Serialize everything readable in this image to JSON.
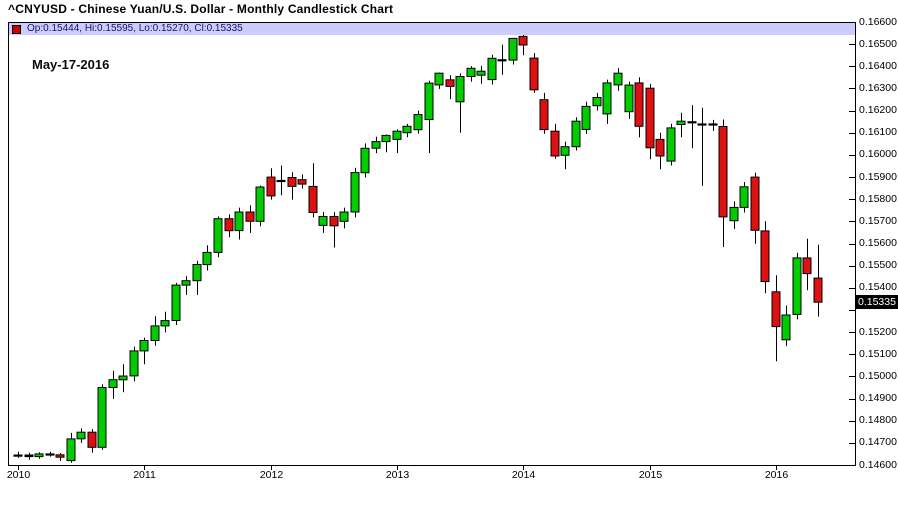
{
  "title": "^CNYUSD - Chinese Yuan/U.S. Dollar - Monthly Candlestick Chart",
  "info_bar": {
    "legend_icon": "red-square",
    "text": "Op:0.15444, Hi:0.15595, Lo:0.15270, Cl:0.15335"
  },
  "date_label": "May-17-2016",
  "price_marker": {
    "label": "0.15335",
    "value": 0.15335
  },
  "colors": {
    "up": "#00cc00",
    "down": "#dd1111",
    "outline": "#000000",
    "info_strip_bg": "#ccccff",
    "info_text": "#16165e",
    "marker_bg": "#000000",
    "marker_fg": "#ffffff"
  },
  "y_axis": {
    "min": 0.146,
    "max": 0.166,
    "step": 0.001,
    "side": "right",
    "labels": [
      "0.16600",
      "0.16500",
      "0.16400",
      "0.16300",
      "0.16200",
      "0.16100",
      "0.16000",
      "0.15900",
      "0.15800",
      "0.15700",
      "0.15600",
      "0.15500",
      "0.15400",
      "0.15200",
      "0.15100",
      "0.15000",
      "0.14900",
      "0.14800",
      "0.14700",
      "0.14600"
    ]
  },
  "x_axis": {
    "labels": [
      "2010",
      "2011",
      "2012",
      "2013",
      "2014",
      "2015",
      "2016"
    ]
  },
  "chart_data": {
    "type": "candlestick",
    "symbol": "^CNYUSD",
    "interval": "monthly",
    "title": "^CNYUSD - Chinese Yuan/U.S. Dollar - Monthly Candlestick Chart",
    "ylim": [
      0.146,
      0.166
    ],
    "grid": false,
    "legend_position": "top-left",
    "last_trade": {
      "date": "May-17-2016",
      "open": 0.15444,
      "high": 0.15595,
      "low": 0.1527,
      "close": 0.15335
    },
    "columns": [
      "month",
      "open",
      "high",
      "low",
      "close"
    ],
    "candles": [
      [
        "2010-01",
        0.14645,
        0.1466,
        0.14632,
        0.14645
      ],
      [
        "2010-02",
        0.14645,
        0.14655,
        0.14624,
        0.14638
      ],
      [
        "2010-03",
        0.14638,
        0.14658,
        0.14628,
        0.1465
      ],
      [
        "2010-04",
        0.1465,
        0.1466,
        0.14638,
        0.14646
      ],
      [
        "2010-05",
        0.14646,
        0.14654,
        0.14618,
        0.14635
      ],
      [
        "2010-06",
        0.1462,
        0.14745,
        0.1461,
        0.14718
      ],
      [
        "2010-07",
        0.14718,
        0.14765,
        0.147,
        0.14748
      ],
      [
        "2010-08",
        0.14748,
        0.14762,
        0.14655,
        0.1468
      ],
      [
        "2010-09",
        0.1468,
        0.14965,
        0.14668,
        0.1495
      ],
      [
        "2010-10",
        0.1495,
        0.15025,
        0.14898,
        0.14985
      ],
      [
        "2010-11",
        0.14985,
        0.15055,
        0.14928,
        0.15002
      ],
      [
        "2010-12",
        0.15002,
        0.15135,
        0.14978,
        0.15115
      ],
      [
        "2011-01",
        0.15115,
        0.15175,
        0.15055,
        0.15162
      ],
      [
        "2011-02",
        0.15162,
        0.15272,
        0.15138,
        0.15228
      ],
      [
        "2011-03",
        0.15228,
        0.15292,
        0.15198,
        0.15252
      ],
      [
        "2011-04",
        0.15252,
        0.15422,
        0.15232,
        0.15412
      ],
      [
        "2011-05",
        0.15412,
        0.15452,
        0.15368,
        0.15432
      ],
      [
        "2011-06",
        0.15432,
        0.15522,
        0.15368,
        0.15505
      ],
      [
        "2011-07",
        0.15505,
        0.15592,
        0.15478,
        0.1556
      ],
      [
        "2011-08",
        0.1556,
        0.15722,
        0.15538,
        0.15712
      ],
      [
        "2011-09",
        0.15712,
        0.15732,
        0.15628,
        0.15658
      ],
      [
        "2011-10",
        0.15658,
        0.15762,
        0.15618,
        0.15742
      ],
      [
        "2011-11",
        0.15742,
        0.15772,
        0.15648,
        0.157
      ],
      [
        "2011-12",
        0.157,
        0.15862,
        0.15678,
        0.15855
      ],
      [
        "2012-01",
        0.159,
        0.1594,
        0.15798,
        0.15815
      ],
      [
        "2012-02",
        0.15885,
        0.15952,
        0.15818,
        0.1588
      ],
      [
        "2012-03",
        0.15898,
        0.15922,
        0.15798,
        0.15858
      ],
      [
        "2012-04",
        0.15888,
        0.15912,
        0.15848,
        0.15868
      ],
      [
        "2012-05",
        0.15858,
        0.15962,
        0.15718,
        0.1574
      ],
      [
        "2012-06",
        0.15682,
        0.15742,
        0.15648,
        0.15722
      ],
      [
        "2012-07",
        0.15722,
        0.15742,
        0.15582,
        0.1568
      ],
      [
        "2012-08",
        0.157,
        0.15762,
        0.15668,
        0.15742
      ],
      [
        "2012-09",
        0.15742,
        0.15942,
        0.15718,
        0.1592
      ],
      [
        "2012-10",
        0.1592,
        0.16052,
        0.15898,
        0.1603
      ],
      [
        "2012-11",
        0.1603,
        0.16082,
        0.16008,
        0.1606
      ],
      [
        "2012-12",
        0.1606,
        0.16092,
        0.16012,
        0.16088
      ],
      [
        "2013-01",
        0.1607,
        0.16115,
        0.16008,
        0.16107
      ],
      [
        "2013-02",
        0.161,
        0.1614,
        0.1608,
        0.16129
      ],
      [
        "2013-03",
        0.16114,
        0.162,
        0.16096,
        0.16182
      ],
      [
        "2013-04",
        0.16159,
        0.16335,
        0.16008,
        0.16324
      ],
      [
        "2013-05",
        0.16316,
        0.16372,
        0.16298,
        0.16369
      ],
      [
        "2013-06",
        0.16339,
        0.1636,
        0.16252,
        0.16309
      ],
      [
        "2013-07",
        0.1624,
        0.16368,
        0.161,
        0.16354
      ],
      [
        "2013-08",
        0.16354,
        0.164,
        0.1633,
        0.16391
      ],
      [
        "2013-09",
        0.1636,
        0.16402,
        0.16322,
        0.16378
      ],
      [
        "2013-10",
        0.1634,
        0.16452,
        0.16318,
        0.16436
      ],
      [
        "2013-11",
        0.16428,
        0.16498,
        0.16362,
        0.1643
      ],
      [
        "2013-12",
        0.16428,
        0.16525,
        0.16408,
        0.16526
      ],
      [
        "2014-01",
        0.16535,
        0.16545,
        0.1645,
        0.16496
      ],
      [
        "2014-02",
        0.16437,
        0.1646,
        0.1628,
        0.16294
      ],
      [
        "2014-03",
        0.16249,
        0.1628,
        0.16095,
        0.16114
      ],
      [
        "2014-04",
        0.16107,
        0.1614,
        0.15982,
        0.15995
      ],
      [
        "2014-05",
        0.15998,
        0.1606,
        0.15935,
        0.16037
      ],
      [
        "2014-06",
        0.16037,
        0.1617,
        0.1602,
        0.16152
      ],
      [
        "2014-07",
        0.16115,
        0.1624,
        0.16095,
        0.16219
      ],
      [
        "2014-08",
        0.16222,
        0.1628,
        0.162,
        0.16259
      ],
      [
        "2014-09",
        0.16185,
        0.1634,
        0.1614,
        0.16325
      ],
      [
        "2014-10",
        0.16316,
        0.16392,
        0.1629,
        0.16369
      ],
      [
        "2014-11",
        0.16195,
        0.1633,
        0.16162,
        0.16315
      ],
      [
        "2014-12",
        0.16325,
        0.1635,
        0.16079,
        0.16129
      ],
      [
        "2015-01",
        0.16301,
        0.1632,
        0.1598,
        0.16032
      ],
      [
        "2015-02",
        0.1607,
        0.161,
        0.15935,
        0.15995
      ],
      [
        "2015-03",
        0.15972,
        0.1614,
        0.15952,
        0.16122
      ],
      [
        "2015-04",
        0.16137,
        0.1619,
        0.1608,
        0.16152
      ],
      [
        "2015-05",
        0.1615,
        0.16225,
        0.1603,
        0.16145
      ],
      [
        "2015-06",
        0.1614,
        0.16213,
        0.1586,
        0.16138
      ],
      [
        "2015-07",
        0.1614,
        0.16158,
        0.16108,
        0.16136
      ],
      [
        "2015-08",
        0.16128,
        0.1616,
        0.15584,
        0.1572
      ],
      [
        "2015-09",
        0.15703,
        0.1579,
        0.15666,
        0.15763
      ],
      [
        "2015-10",
        0.15763,
        0.15877,
        0.1574,
        0.15856
      ],
      [
        "2015-11",
        0.159,
        0.1592,
        0.15599,
        0.1566
      ],
      [
        "2015-12",
        0.15657,
        0.157,
        0.15375,
        0.15428
      ],
      [
        "2016-01",
        0.15382,
        0.15457,
        0.15068,
        0.15225
      ],
      [
        "2016-02",
        0.15165,
        0.1532,
        0.15137,
        0.15277
      ],
      [
        "2016-03",
        0.1528,
        0.15558,
        0.15258,
        0.15535
      ],
      [
        "2016-04",
        0.15535,
        0.15621,
        0.15389,
        0.15464
      ],
      [
        "2016-05",
        0.15444,
        0.15595,
        0.1527,
        0.15335
      ]
    ]
  }
}
